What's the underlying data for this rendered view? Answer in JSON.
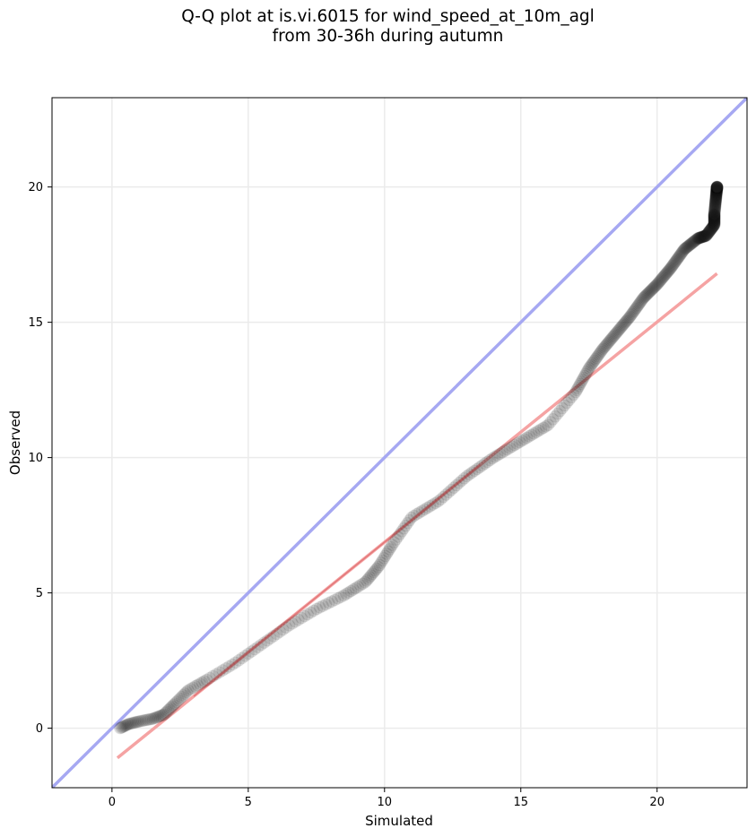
{
  "chart_data": {
    "type": "scatter",
    "title_lines": [
      "Q-Q plot at is.vi.6015 for wind_speed_at_10m_agl",
      "from 30-36h during autumn"
    ],
    "xlabel": "Simulated",
    "ylabel": "Observed",
    "xlim": [
      -2.2,
      23.3
    ],
    "ylim": [
      -2.2,
      23.3
    ],
    "x_ticks": [
      0,
      5,
      10,
      15,
      20
    ],
    "y_ticks": [
      0,
      5,
      10,
      15,
      20
    ],
    "grid": true,
    "colors": {
      "points": "#1a1a1a",
      "identity_line": "#a6a8f2",
      "fit_line": "#f5a3a3",
      "fit_line_overlay": "#c0272d",
      "grid": "#ebebeb"
    },
    "identity_line": {
      "x": [
        -2.2,
        23.3
      ],
      "y": [
        -2.2,
        23.3
      ]
    },
    "fit_line": {
      "x": [
        0.2,
        22.2
      ],
      "y": [
        -1.1,
        16.8
      ]
    },
    "qq_anchors": [
      [
        0.3,
        0.0
      ],
      [
        0.6,
        0.15
      ],
      [
        1.0,
        0.25
      ],
      [
        1.5,
        0.35
      ],
      [
        1.9,
        0.5
      ],
      [
        2.3,
        0.9
      ],
      [
        2.8,
        1.4
      ],
      [
        3.5,
        1.8
      ],
      [
        4.5,
        2.4
      ],
      [
        5.5,
        3.1
      ],
      [
        6.5,
        3.8
      ],
      [
        7.5,
        4.4
      ],
      [
        8.5,
        4.9
      ],
      [
        9.3,
        5.4
      ],
      [
        9.8,
        6.0
      ],
      [
        10.3,
        6.8
      ],
      [
        11.0,
        7.8
      ],
      [
        12.0,
        8.4
      ],
      [
        13.0,
        9.3
      ],
      [
        14.0,
        10.0
      ],
      [
        15.0,
        10.6
      ],
      [
        16.0,
        11.2
      ],
      [
        17.0,
        12.4
      ],
      [
        17.5,
        13.3
      ],
      [
        18.0,
        14.0
      ],
      [
        18.5,
        14.6
      ],
      [
        19.0,
        15.2
      ],
      [
        19.5,
        15.9
      ],
      [
        20.0,
        16.4
      ],
      [
        20.5,
        17.0
      ],
      [
        21.0,
        17.7
      ],
      [
        21.5,
        18.1
      ],
      [
        21.8,
        18.2
      ],
      [
        22.1,
        18.6
      ],
      [
        22.1,
        19.0
      ],
      [
        22.2,
        20.0
      ]
    ]
  }
}
